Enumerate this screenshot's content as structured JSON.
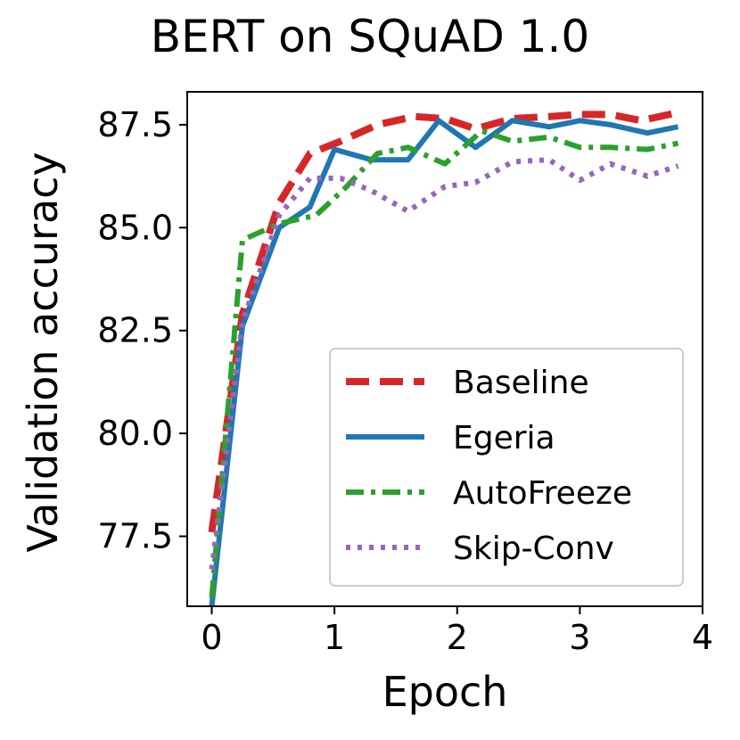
{
  "chart_data": {
    "type": "line",
    "title": "BERT on SQuAD 1.0",
    "xlabel": "Epoch",
    "ylabel": "Validation accuracy",
    "xlim": [
      -0.2,
      4.0
    ],
    "ylim": [
      75.8,
      88.3
    ],
    "xticks": [
      0,
      1,
      2,
      3,
      4
    ],
    "xtick_labels": [
      "0",
      "1",
      "2",
      "3",
      "4"
    ],
    "yticks": [
      77.5,
      80.0,
      82.5,
      85.0,
      87.5
    ],
    "ytick_labels": [
      "77.5",
      "80.0",
      "82.5",
      "85.0",
      "87.5"
    ],
    "grid": false,
    "legend_position": "lower-right",
    "series": [
      {
        "name": "Baseline",
        "color": "#d62728",
        "style": "dashed",
        "x": [
          0,
          0.25,
          0.55,
          0.8,
          1.05,
          1.35,
          1.65,
          1.9,
          2.15,
          2.45,
          2.75,
          3.0,
          3.25,
          3.5,
          3.8
        ],
        "y": [
          77.6,
          82.9,
          85.6,
          86.8,
          87.1,
          87.5,
          87.7,
          87.65,
          87.4,
          87.65,
          87.7,
          87.75,
          87.75,
          87.6,
          87.8
        ]
      },
      {
        "name": "Egeria",
        "color": "#1f77b4",
        "style": "solid",
        "x": [
          0,
          0.25,
          0.55,
          0.8,
          1.0,
          1.3,
          1.6,
          1.85,
          2.15,
          2.45,
          2.75,
          3.0,
          3.25,
          3.55,
          3.8
        ],
        "y": [
          75.8,
          82.6,
          85.0,
          85.5,
          86.9,
          86.65,
          86.65,
          87.6,
          86.95,
          87.6,
          87.45,
          87.6,
          87.5,
          87.3,
          87.45
        ]
      },
      {
        "name": "AutoFreeze",
        "color": "#2ca02c",
        "style": "dashdot",
        "x": [
          0,
          0.25,
          0.55,
          0.85,
          1.1,
          1.35,
          1.6,
          1.9,
          2.2,
          2.45,
          2.75,
          3.0,
          3.25,
          3.55,
          3.8
        ],
        "y": [
          76.0,
          84.7,
          85.1,
          85.3,
          86.0,
          86.8,
          86.95,
          86.55,
          87.35,
          87.1,
          87.2,
          86.95,
          86.95,
          86.9,
          87.05
        ]
      },
      {
        "name": "Skip-Conv",
        "color": "#9467bd",
        "style": "dotted",
        "x": [
          0,
          0.25,
          0.55,
          0.8,
          1.05,
          1.3,
          1.6,
          1.9,
          2.15,
          2.45,
          2.75,
          3.0,
          3.25,
          3.55,
          3.8
        ],
        "y": [
          76.7,
          82.7,
          85.3,
          86.2,
          86.2,
          85.9,
          85.4,
          86.0,
          86.1,
          86.6,
          86.65,
          86.15,
          86.55,
          86.25,
          86.5
        ]
      }
    ]
  }
}
